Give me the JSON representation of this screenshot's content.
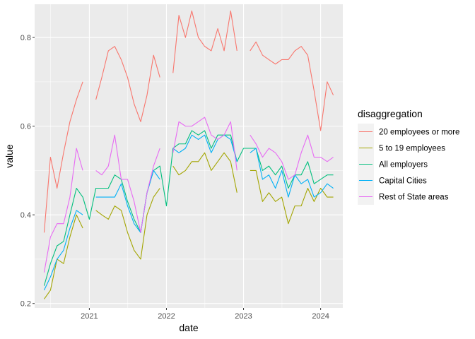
{
  "chart_data": {
    "type": "line",
    "xlabel": "date",
    "ylabel": "value",
    "xlim": [
      "2020-04-17",
      "2024-04-15"
    ],
    "ylim": [
      0.19,
      0.875
    ],
    "x_ticks": [
      "2021-01-01",
      "2022-01-01",
      "2023-01-01",
      "2024-01-01"
    ],
    "x_tick_labels": [
      "2021",
      "2022",
      "2023",
      "2024"
    ],
    "y_ticks": [
      0.2,
      0.4,
      0.6,
      0.8
    ],
    "y_tick_labels": [
      "0.2",
      "0.4",
      "0.6",
      "0.8"
    ],
    "grid": true,
    "legend": {
      "title": "disaggregation",
      "position": "right"
    },
    "x": [
      "2020-06",
      "2020-07",
      "2020-08",
      "2020-09",
      "2020-10",
      "2020-11",
      "2020-12",
      "2021-01",
      "2021-02",
      "2021-03",
      "2021-04",
      "2021-05",
      "2021-06",
      "2021-07",
      "2021-08",
      "2021-09",
      "2021-10",
      "2021-11",
      "2021-12",
      "2022-01",
      "2022-02",
      "2022-03",
      "2022-04",
      "2022-05",
      "2022-06",
      "2022-07",
      "2022-08",
      "2022-09",
      "2022-10",
      "2022-11",
      "2022-12",
      "2023-01",
      "2023-02",
      "2023-03",
      "2023-04",
      "2023-05",
      "2023-06",
      "2023-07",
      "2023-08",
      "2023-09",
      "2023-10",
      "2023-11",
      "2023-12",
      "2024-01",
      "2024-02",
      "2024-03"
    ],
    "series": [
      {
        "name": "20 employees or more",
        "color": "#F8766D",
        "values": [
          0.36,
          0.53,
          0.46,
          0.54,
          0.61,
          0.66,
          0.7,
          null,
          0.66,
          0.71,
          0.77,
          0.78,
          0.75,
          0.71,
          0.65,
          0.61,
          0.67,
          0.76,
          0.71,
          null,
          0.72,
          0.85,
          0.8,
          0.86,
          0.8,
          0.78,
          0.77,
          0.82,
          0.77,
          0.86,
          0.77,
          null,
          0.77,
          0.79,
          0.76,
          0.75,
          0.74,
          0.75,
          0.75,
          0.77,
          0.78,
          0.76,
          0.68,
          0.59,
          0.7,
          0.67
        ]
      },
      {
        "name": "5 to 19 employees",
        "color": "#A3A500",
        "values": [
          0.21,
          0.23,
          0.3,
          0.29,
          0.35,
          0.4,
          0.37,
          null,
          0.41,
          0.4,
          0.39,
          0.42,
          0.41,
          0.36,
          0.32,
          0.3,
          0.4,
          0.44,
          0.46,
          null,
          0.51,
          0.49,
          0.5,
          0.52,
          0.52,
          0.54,
          0.5,
          0.52,
          0.54,
          0.52,
          0.45,
          null,
          0.5,
          0.5,
          0.43,
          0.45,
          0.43,
          0.44,
          0.38,
          0.42,
          0.42,
          0.46,
          0.43,
          0.46,
          0.44,
          0.44
        ]
      },
      {
        "name": "All employers",
        "color": "#00BF7D",
        "values": [
          0.24,
          0.29,
          0.33,
          0.34,
          0.4,
          0.46,
          0.44,
          0.39,
          0.46,
          0.46,
          0.46,
          0.49,
          0.48,
          0.43,
          0.39,
          0.36,
          0.45,
          0.5,
          0.51,
          0.42,
          0.55,
          0.56,
          0.56,
          0.59,
          0.58,
          0.59,
          0.55,
          0.58,
          0.58,
          0.58,
          0.52,
          0.55,
          0.55,
          0.55,
          0.5,
          0.51,
          0.49,
          0.51,
          0.46,
          0.49,
          0.49,
          0.52,
          0.47,
          0.48,
          0.49,
          0.49
        ]
      },
      {
        "name": "Capital Cities",
        "color": "#00B0F6",
        "values": [
          0.23,
          0.26,
          0.3,
          0.32,
          0.37,
          0.41,
          0.4,
          null,
          0.44,
          0.44,
          0.44,
          0.44,
          0.47,
          0.42,
          0.38,
          0.36,
          0.45,
          0.5,
          0.48,
          null,
          0.55,
          0.54,
          0.55,
          0.58,
          0.57,
          0.58,
          0.54,
          0.57,
          0.58,
          0.57,
          0.52,
          null,
          0.54,
          0.55,
          0.48,
          0.49,
          0.46,
          0.5,
          0.44,
          0.49,
          0.47,
          0.48,
          0.44,
          0.45,
          0.47,
          0.46
        ]
      },
      {
        "name": "Rest of State areas",
        "color": "#E76BF3",
        "values": [
          0.27,
          0.35,
          0.38,
          0.38,
          0.44,
          0.55,
          0.5,
          null,
          0.5,
          0.49,
          0.51,
          0.58,
          0.48,
          0.48,
          0.43,
          0.36,
          0.45,
          0.51,
          0.55,
          null,
          0.54,
          0.61,
          0.6,
          0.6,
          0.61,
          0.62,
          0.58,
          0.57,
          0.58,
          0.61,
          0.5,
          null,
          0.58,
          0.56,
          0.53,
          0.55,
          0.54,
          0.52,
          0.48,
          0.49,
          0.54,
          0.58,
          0.53,
          0.53,
          0.52,
          0.53
        ]
      }
    ]
  }
}
